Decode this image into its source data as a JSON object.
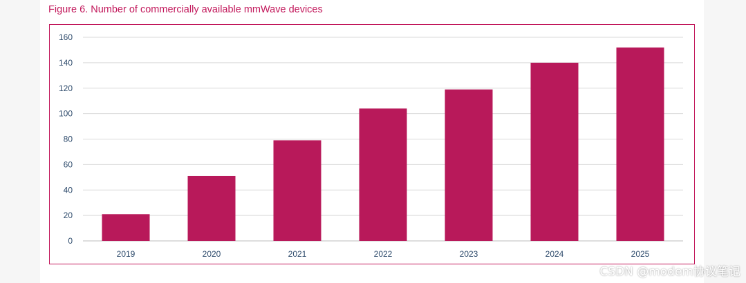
{
  "figure_title": "Figure 6. Number of commercially available mmWave devices",
  "watermark": "CSDN @modem协议笔记",
  "colors": {
    "bar": "#b8195a",
    "accent": "#c2185b",
    "axis_text": "#2d4a6b",
    "grid": "#d9d9d9"
  },
  "chart_data": {
    "type": "bar",
    "title": "Figure 6. Number of commercially available mmWave devices",
    "xlabel": "",
    "ylabel": "",
    "categories": [
      "2019",
      "2020",
      "2021",
      "2022",
      "2023",
      "2024",
      "2025"
    ],
    "values": [
      21,
      51,
      79,
      104,
      119,
      140,
      152
    ],
    "ylim": [
      0,
      160
    ],
    "yticks": [
      0,
      20,
      40,
      60,
      80,
      100,
      120,
      140,
      160
    ],
    "grid": true,
    "legend": "none"
  }
}
